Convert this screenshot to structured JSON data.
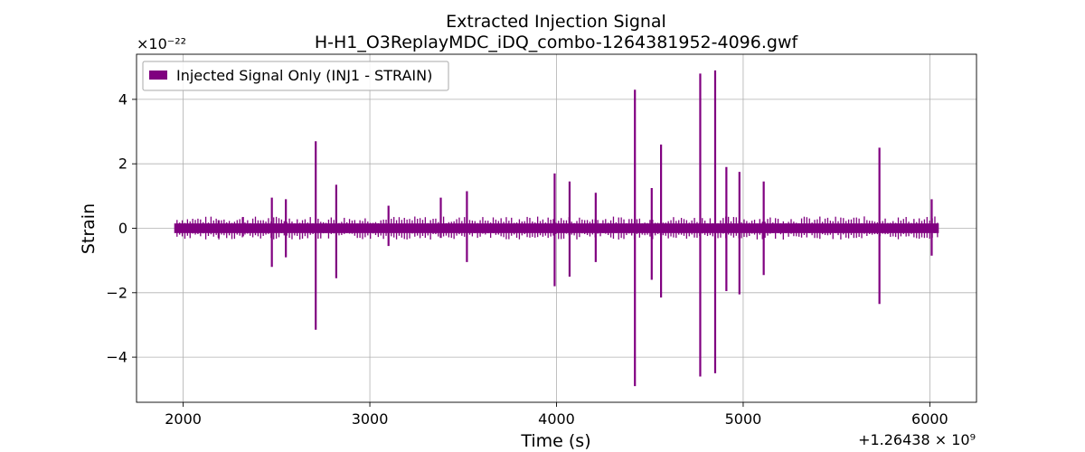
{
  "chart_data": {
    "type": "line",
    "title": "Extracted Injection Signal",
    "subtitle": "H-H1_O3ReplayMDC_iDQ_combo-1264381952-4096.gwf",
    "xlabel": "Time (s)",
    "ylabel": "Strain",
    "x_offset_label": "+1.26438 × 10⁹",
    "y_multiplier_label": "×10⁻²²",
    "xlim": [
      1750,
      6250
    ],
    "ylim": [
      -5.4,
      5.4
    ],
    "x_ticks": [
      2000,
      3000,
      4000,
      5000,
      6000
    ],
    "y_ticks": [
      -4,
      -2,
      0,
      2,
      4
    ],
    "x_tick_labels": [
      "2000",
      "3000",
      "4000",
      "5000",
      "6000"
    ],
    "y_tick_labels": [
      "−4",
      "−2",
      "0",
      "2",
      "4"
    ],
    "grid": true,
    "legend_position": "top-left",
    "series": [
      {
        "name": "Injected Signal Only (INJ1 - STRAIN)",
        "color": "#800080",
        "x_range": [
          1952,
          6048
        ],
        "baseline_band": [
          -0.15,
          0.15
        ],
        "spikes": [
          {
            "x": 2190,
            "max": 0.25,
            "min": -0.3
          },
          {
            "x": 2320,
            "max": 0.35,
            "min": -0.25
          },
          {
            "x": 2475,
            "max": 0.95,
            "min": -1.2
          },
          {
            "x": 2550,
            "max": 0.9,
            "min": -0.9
          },
          {
            "x": 2710,
            "max": 2.7,
            "min": -3.15
          },
          {
            "x": 2820,
            "max": 1.35,
            "min": -1.55
          },
          {
            "x": 3100,
            "max": 0.7,
            "min": -0.55
          },
          {
            "x": 3380,
            "max": 0.95,
            "min": -0.3
          },
          {
            "x": 3520,
            "max": 1.15,
            "min": -1.05
          },
          {
            "x": 3990,
            "max": 1.7,
            "min": -1.8
          },
          {
            "x": 4070,
            "max": 1.45,
            "min": -1.5
          },
          {
            "x": 4210,
            "max": 1.1,
            "min": -1.05
          },
          {
            "x": 4420,
            "max": 4.3,
            "min": -4.9
          },
          {
            "x": 4510,
            "max": 1.25,
            "min": -1.6
          },
          {
            "x": 4560,
            "max": 2.6,
            "min": -2.15
          },
          {
            "x": 4770,
            "max": 4.8,
            "min": -4.6
          },
          {
            "x": 4850,
            "max": 4.9,
            "min": -4.5
          },
          {
            "x": 4910,
            "max": 1.9,
            "min": -1.95
          },
          {
            "x": 4980,
            "max": 1.75,
            "min": -2.05
          },
          {
            "x": 5110,
            "max": 1.45,
            "min": -1.45
          },
          {
            "x": 5730,
            "max": 2.5,
            "min": -2.35
          },
          {
            "x": 6010,
            "max": 0.9,
            "min": -0.85
          }
        ]
      }
    ]
  }
}
